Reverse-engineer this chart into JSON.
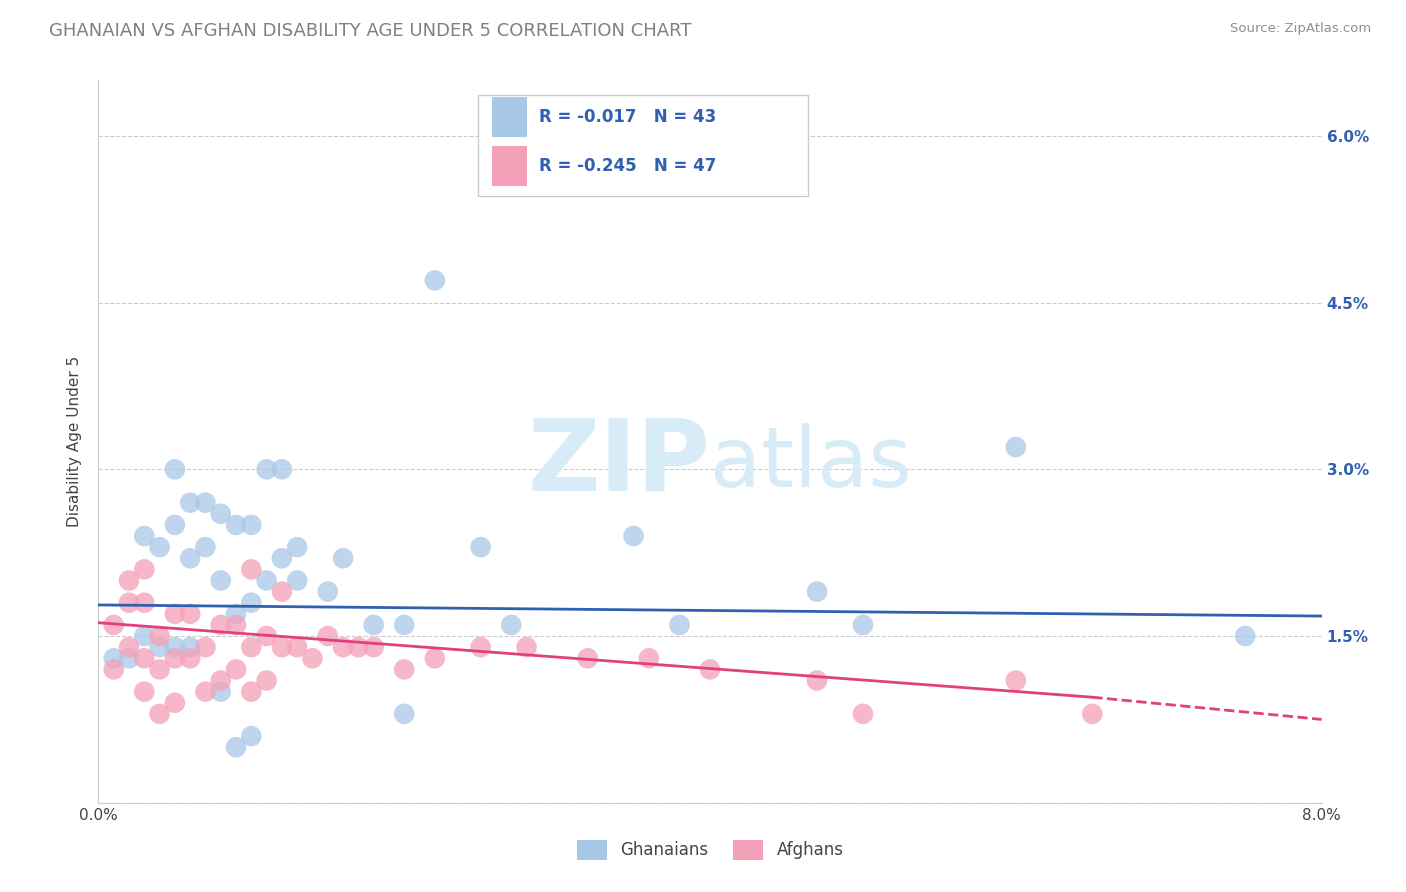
{
  "title": "GHANAIAN VS AFGHAN DISABILITY AGE UNDER 5 CORRELATION CHART",
  "source": "Source: ZipAtlas.com",
  "ylabel": "Disability Age Under 5",
  "xlim": [
    0.0,
    0.08
  ],
  "ylim": [
    0.0,
    0.065
  ],
  "ytick_vals": [
    0.0,
    0.015,
    0.03,
    0.045,
    0.06
  ],
  "ytick_labels_right": [
    "",
    "1.5%",
    "3.0%",
    "4.5%",
    "6.0%"
  ],
  "xtick_vals": [
    0.0,
    0.01,
    0.02,
    0.03,
    0.04,
    0.05,
    0.06,
    0.07,
    0.08
  ],
  "xtick_labels": [
    "0.0%",
    "",
    "",
    "",
    "",
    "",
    "",
    "",
    "8.0%"
  ],
  "legend_r1": "R = -0.017   N = 43",
  "legend_r2": "R = -0.245   N = 47",
  "color_ghanaian": "#A8C8E8",
  "color_afghan": "#F4A0B8",
  "color_line_ghanaian": "#3060B0",
  "color_line_afghan": "#E04080",
  "title_color": "#808080",
  "source_color": "#909090",
  "watermark_color": "#D8ECF8",
  "ghanaian_x": [
    0.001,
    0.002,
    0.003,
    0.003,
    0.004,
    0.004,
    0.005,
    0.005,
    0.005,
    0.006,
    0.006,
    0.006,
    0.007,
    0.007,
    0.008,
    0.008,
    0.009,
    0.009,
    0.01,
    0.01,
    0.011,
    0.011,
    0.012,
    0.012,
    0.013,
    0.013,
    0.015,
    0.016,
    0.018,
    0.02,
    0.025,
    0.027,
    0.035,
    0.038,
    0.047,
    0.06,
    0.075,
    0.02,
    0.022,
    0.008,
    0.009,
    0.01,
    0.05
  ],
  "ghanaian_y": [
    0.013,
    0.013,
    0.024,
    0.015,
    0.023,
    0.014,
    0.03,
    0.025,
    0.014,
    0.027,
    0.022,
    0.014,
    0.027,
    0.023,
    0.026,
    0.02,
    0.025,
    0.017,
    0.025,
    0.018,
    0.03,
    0.02,
    0.03,
    0.022,
    0.023,
    0.02,
    0.019,
    0.022,
    0.016,
    0.016,
    0.023,
    0.016,
    0.024,
    0.016,
    0.019,
    0.032,
    0.015,
    0.008,
    0.047,
    0.01,
    0.005,
    0.006,
    0.016
  ],
  "afghan_x": [
    0.001,
    0.001,
    0.002,
    0.002,
    0.003,
    0.003,
    0.003,
    0.004,
    0.004,
    0.004,
    0.005,
    0.005,
    0.005,
    0.006,
    0.006,
    0.007,
    0.007,
    0.008,
    0.008,
    0.009,
    0.009,
    0.01,
    0.01,
    0.011,
    0.011,
    0.012,
    0.013,
    0.014,
    0.015,
    0.016,
    0.017,
    0.018,
    0.02,
    0.022,
    0.025,
    0.028,
    0.032,
    0.036,
    0.04,
    0.047,
    0.05,
    0.06,
    0.065,
    0.002,
    0.003,
    0.01,
    0.012
  ],
  "afghan_y": [
    0.012,
    0.016,
    0.014,
    0.018,
    0.01,
    0.013,
    0.018,
    0.008,
    0.012,
    0.015,
    0.009,
    0.013,
    0.017,
    0.013,
    0.017,
    0.01,
    0.014,
    0.011,
    0.016,
    0.012,
    0.016,
    0.01,
    0.014,
    0.011,
    0.015,
    0.014,
    0.014,
    0.013,
    0.015,
    0.014,
    0.014,
    0.014,
    0.012,
    0.013,
    0.014,
    0.014,
    0.013,
    0.013,
    0.012,
    0.011,
    0.008,
    0.011,
    0.008,
    0.02,
    0.021,
    0.021,
    0.019
  ],
  "line_g_x0": 0.0,
  "line_g_x1": 0.08,
  "line_g_y0": 0.0178,
  "line_g_y1": 0.0168,
  "line_a_x0": 0.0,
  "line_a_x1": 0.065,
  "line_a_y0": 0.0162,
  "line_a_y1": 0.0095,
  "line_a_dash_x0": 0.065,
  "line_a_dash_x1": 0.08,
  "line_a_dash_y0": 0.0095,
  "line_a_dash_y1": 0.0075
}
